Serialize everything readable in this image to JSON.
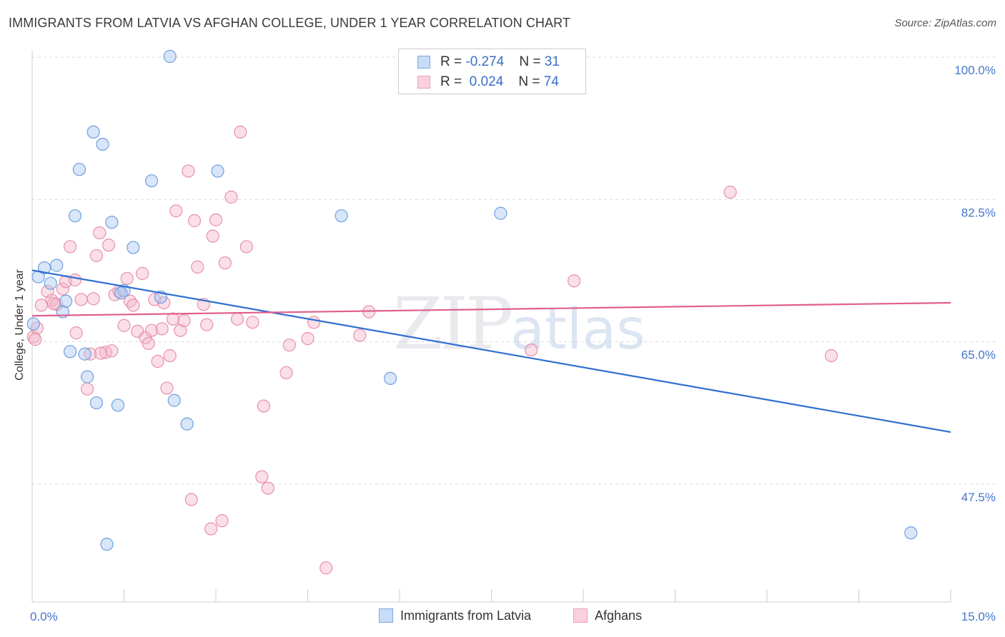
{
  "header": {
    "title": "IMMIGRANTS FROM LATVIA VS AFGHAN COLLEGE, UNDER 1 YEAR CORRELATION CHART",
    "source": "Source: ZipAtlas.com"
  },
  "watermark": {
    "zip": "ZIP",
    "atlas": "atlas"
  },
  "legend": {
    "rows": [
      {
        "r_label": "R = ",
        "r_value": "-0.274",
        "n_label": "N = ",
        "n_value": "31",
        "color": "#a8c8f0"
      },
      {
        "r_label": "R = ",
        "r_value": "0.024",
        "n_label": "N = ",
        "n_value": "74",
        "color": "#f5b8cc"
      }
    ]
  },
  "bottom_legend": {
    "items": [
      {
        "label": "Immigrants from Latvia",
        "color": "#a8c8f0"
      },
      {
        "label": "Afghans",
        "color": "#f5b8cc"
      }
    ]
  },
  "chart_data": {
    "type": "scatter",
    "title": "IMMIGRANTS FROM LATVIA VS AFGHAN COLLEGE, UNDER 1 YEAR CORRELATION CHART",
    "xlabel": "",
    "ylabel": "College, Under 1 year",
    "xlim": [
      0,
      15
    ],
    "ylim": [
      33,
      101
    ],
    "x_tick_labels": [
      "0.0%",
      "15.0%"
    ],
    "y_ticks": [
      47.5,
      65.0,
      82.5,
      100.0
    ],
    "y_tick_labels": [
      "47.5%",
      "65.0%",
      "82.5%",
      "100.0%"
    ],
    "grid": true,
    "legend_position": "top-center",
    "series": [
      {
        "name": "Immigrants from Latvia",
        "color": "#6f9fe0",
        "fill": "#a8c8f0",
        "trend": {
          "x": [
            0,
            15
          ],
          "y": [
            73.8,
            53.9
          ],
          "color": "#2f6fd0"
        },
        "points": [
          [
            0.02,
            67.2
          ],
          [
            0.1,
            73.0
          ],
          [
            0.2,
            74.1
          ],
          [
            0.3,
            72.2
          ],
          [
            0.4,
            74.4
          ],
          [
            0.5,
            68.7
          ],
          [
            0.55,
            70.0
          ],
          [
            0.62,
            63.8
          ],
          [
            0.7,
            80.5
          ],
          [
            0.77,
            86.2
          ],
          [
            0.86,
            63.5
          ],
          [
            0.9,
            60.7
          ],
          [
            1.0,
            90.8
          ],
          [
            1.05,
            57.5
          ],
          [
            1.15,
            89.3
          ],
          [
            1.22,
            40.1
          ],
          [
            1.3,
            79.7
          ],
          [
            1.4,
            57.2
          ],
          [
            1.5,
            71.3
          ],
          [
            1.65,
            76.6
          ],
          [
            1.95,
            84.8
          ],
          [
            2.1,
            70.5
          ],
          [
            2.25,
            100.1
          ],
          [
            2.32,
            57.8
          ],
          [
            2.53,
            54.9
          ],
          [
            3.03,
            86.0
          ],
          [
            5.05,
            80.5
          ],
          [
            5.85,
            60.5
          ],
          [
            7.65,
            80.8
          ],
          [
            14.35,
            41.5
          ],
          [
            1.45,
            71.0
          ]
        ]
      },
      {
        "name": "Afghans",
        "color": "#e890ac",
        "fill": "#f5b8cc",
        "trend": {
          "x": [
            0,
            15
          ],
          "y": [
            68.2,
            69.8
          ],
          "color": "#e05f8e"
        },
        "points": [
          [
            0.02,
            65.6
          ],
          [
            0.08,
            66.7
          ],
          [
            0.15,
            69.5
          ],
          [
            0.25,
            71.2
          ],
          [
            0.32,
            70.1
          ],
          [
            0.4,
            69.6
          ],
          [
            0.5,
            71.5
          ],
          [
            0.55,
            72.4
          ],
          [
            0.62,
            76.7
          ],
          [
            0.7,
            72.6
          ],
          [
            0.72,
            66.1
          ],
          [
            0.8,
            70.2
          ],
          [
            0.9,
            59.2
          ],
          [
            0.95,
            63.5
          ],
          [
            1.0,
            70.3
          ],
          [
            1.05,
            75.6
          ],
          [
            1.1,
            78.4
          ],
          [
            1.2,
            63.7
          ],
          [
            1.25,
            76.9
          ],
          [
            1.3,
            63.9
          ],
          [
            1.35,
            70.8
          ],
          [
            1.42,
            71.2
          ],
          [
            1.5,
            67.0
          ],
          [
            1.55,
            72.8
          ],
          [
            1.6,
            70.0
          ],
          [
            1.65,
            69.5
          ],
          [
            1.72,
            66.3
          ],
          [
            1.8,
            73.4
          ],
          [
            1.85,
            65.5
          ],
          [
            1.9,
            64.8
          ],
          [
            1.95,
            66.4
          ],
          [
            2.0,
            70.2
          ],
          [
            2.05,
            62.6
          ],
          [
            2.12,
            66.6
          ],
          [
            2.15,
            69.8
          ],
          [
            2.2,
            59.3
          ],
          [
            2.25,
            63.3
          ],
          [
            2.3,
            67.8
          ],
          [
            2.35,
            81.1
          ],
          [
            2.42,
            66.4
          ],
          [
            2.48,
            67.6
          ],
          [
            2.55,
            86.0
          ],
          [
            2.6,
            45.6
          ],
          [
            2.65,
            79.9
          ],
          [
            2.7,
            74.2
          ],
          [
            2.8,
            69.6
          ],
          [
            2.85,
            67.1
          ],
          [
            2.92,
            42.0
          ],
          [
            2.95,
            78.0
          ],
          [
            3.0,
            80.0
          ],
          [
            3.1,
            43.0
          ],
          [
            3.15,
            74.7
          ],
          [
            3.25,
            82.8
          ],
          [
            3.35,
            67.8
          ],
          [
            3.4,
            90.8
          ],
          [
            3.5,
            76.7
          ],
          [
            3.6,
            67.4
          ],
          [
            3.75,
            48.4
          ],
          [
            3.78,
            57.1
          ],
          [
            3.85,
            47.0
          ],
          [
            4.15,
            61.2
          ],
          [
            4.2,
            64.6
          ],
          [
            4.5,
            65.4
          ],
          [
            4.6,
            67.4
          ],
          [
            4.8,
            37.2
          ],
          [
            5.35,
            65.8
          ],
          [
            5.5,
            68.7
          ],
          [
            8.15,
            64.0
          ],
          [
            8.85,
            72.5
          ],
          [
            11.4,
            83.4
          ],
          [
            13.05,
            63.3
          ],
          [
            0.05,
            65.3
          ],
          [
            0.35,
            69.7
          ],
          [
            1.12,
            63.6
          ]
        ]
      }
    ]
  }
}
